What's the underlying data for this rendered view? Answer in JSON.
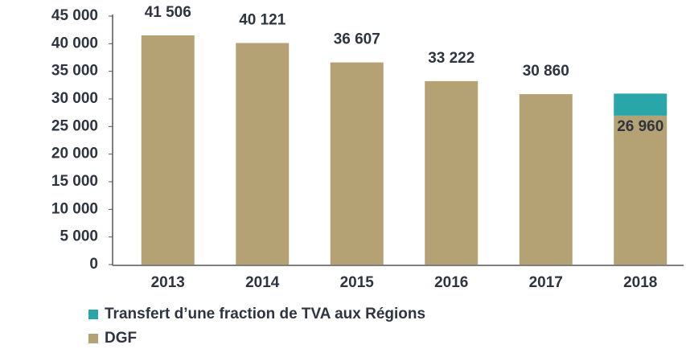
{
  "chart_data": {
    "type": "stacked_bar",
    "categories": [
      "2013",
      "2014",
      "2015",
      "2016",
      "2017",
      "2018"
    ],
    "series": [
      {
        "name": "DGF",
        "color": "#b5a274",
        "values": [
          41506,
          40121,
          36607,
          33222,
          30860,
          26960
        ],
        "value_labels": [
          "41 506",
          "40 121",
          "36 607",
          "33 222",
          "30 860",
          "26 960"
        ]
      },
      {
        "name": "Transfert d’une fraction de TVA aux Régions",
        "color": "#2aa5a8",
        "values": [
          null,
          null,
          null,
          null,
          null,
          4000
        ]
      }
    ],
    "ylim": [
      0,
      45000
    ],
    "yticks": [
      0,
      {
        "value": 5000,
        "label": "5 000"
      },
      {
        "value": 10000,
        "label": "10 000"
      },
      {
        "value": 15000,
        "label": "15 000"
      },
      {
        "value": 20000,
        "label": "20 000"
      },
      {
        "value": 25000,
        "label": "25 000"
      },
      {
        "value": 30000,
        "label": "30 000"
      },
      {
        "value": 35000,
        "label": "35 000"
      },
      {
        "value": 40000,
        "label": "40 000"
      },
      {
        "value": 45000,
        "label": "45 000"
      }
    ],
    "grid": false
  }
}
